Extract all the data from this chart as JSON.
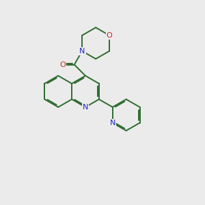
{
  "background_color": "#ebebeb",
  "bond_color": "#2d6b2d",
  "N_color": "#2222cc",
  "O_color": "#cc2222",
  "bond_width": 1.4,
  "figsize": [
    3.0,
    3.0
  ],
  "dpi": 100,
  "xlim": [
    0,
    10
  ],
  "ylim": [
    0,
    10
  ]
}
